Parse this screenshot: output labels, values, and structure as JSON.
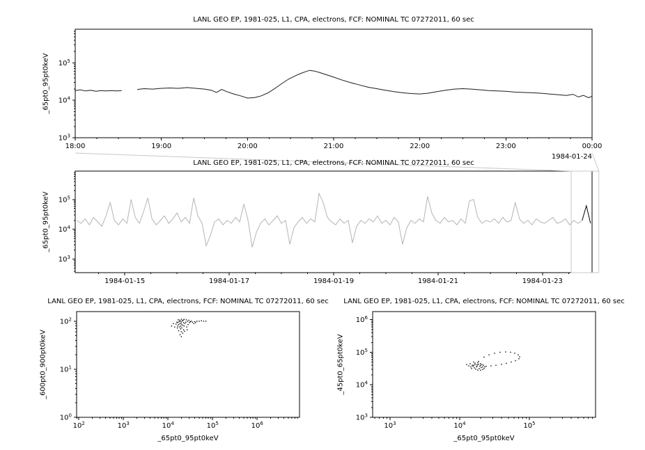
{
  "background": "#ffffff",
  "chart_data": [
    {
      "id": "top",
      "type": "line",
      "title": "LANL GEO EP, 1981-025, L1, CPA, electrons, FCF: NOMINAL TC 07272011, 60 sec",
      "ylabel": "_65pt0_95pt0keV",
      "xlabel": "",
      "x_axis": {
        "type": "linear",
        "range": [
          18,
          24
        ],
        "minor_step": 0.25,
        "end_label": "1984-01-24",
        "ticks": [
          {
            "v": 18,
            "label": "18:00"
          },
          {
            "v": 19,
            "label": "19:00"
          },
          {
            "v": 20,
            "label": "20:00"
          },
          {
            "v": 21,
            "label": "21:00"
          },
          {
            "v": 22,
            "label": "22:00"
          },
          {
            "v": 23,
            "label": "23:00"
          },
          {
            "v": 24,
            "label": "00:00"
          }
        ]
      },
      "y_axis": {
        "type": "log",
        "range": [
          3,
          5.9
        ],
        "decade_labels": [
          "10^3",
          "10^4",
          "10^5"
        ]
      },
      "grid": false,
      "series": [
        {
          "name": "_65pt0_95pt0keV",
          "color": "#1a1a1a",
          "points": [
            [
              18.0,
              4.26
            ],
            [
              18.06,
              4.28
            ],
            [
              18.12,
              4.25
            ],
            [
              18.18,
              4.27
            ],
            [
              18.24,
              4.24
            ],
            [
              18.3,
              4.26
            ],
            [
              18.36,
              4.25
            ],
            [
              18.42,
              4.26
            ],
            [
              18.48,
              4.25
            ],
            [
              18.54,
              4.26
            ],
            null,
            [
              18.72,
              4.29
            ],
            [
              18.8,
              4.31
            ],
            [
              18.9,
              4.3
            ],
            [
              19.0,
              4.32
            ],
            [
              19.1,
              4.33
            ],
            [
              19.2,
              4.32
            ],
            [
              19.3,
              4.34
            ],
            [
              19.4,
              4.32
            ],
            [
              19.5,
              4.3
            ],
            [
              19.58,
              4.27
            ],
            [
              19.64,
              4.21
            ],
            [
              19.7,
              4.29
            ],
            [
              19.76,
              4.23
            ],
            [
              19.84,
              4.17
            ],
            [
              19.92,
              4.12
            ],
            [
              20.0,
              4.06
            ],
            [
              20.08,
              4.07
            ],
            [
              20.16,
              4.12
            ],
            [
              20.24,
              4.2
            ],
            [
              20.32,
              4.32
            ],
            [
              20.4,
              4.45
            ],
            [
              20.48,
              4.57
            ],
            [
              20.56,
              4.66
            ],
            [
              20.62,
              4.72
            ],
            [
              20.68,
              4.77
            ],
            [
              20.72,
              4.8
            ],
            [
              20.78,
              4.78
            ],
            [
              20.84,
              4.74
            ],
            [
              20.92,
              4.68
            ],
            [
              21.0,
              4.62
            ],
            [
              21.1,
              4.54
            ],
            [
              21.2,
              4.47
            ],
            [
              21.3,
              4.41
            ],
            [
              21.4,
              4.35
            ],
            [
              21.5,
              4.31
            ],
            [
              21.6,
              4.27
            ],
            [
              21.7,
              4.23
            ],
            [
              21.8,
              4.2
            ],
            [
              21.9,
              4.18
            ],
            [
              22.0,
              4.17
            ],
            [
              22.1,
              4.19
            ],
            [
              22.2,
              4.23
            ],
            [
              22.3,
              4.27
            ],
            [
              22.4,
              4.3
            ],
            [
              22.5,
              4.31
            ],
            [
              22.6,
              4.3
            ],
            [
              22.7,
              4.28
            ],
            [
              22.8,
              4.26
            ],
            [
              22.9,
              4.25
            ],
            [
              23.0,
              4.24
            ],
            [
              23.1,
              4.22
            ],
            [
              23.2,
              4.21
            ],
            [
              23.3,
              4.2
            ],
            [
              23.4,
              4.19
            ],
            [
              23.5,
              4.17
            ],
            [
              23.6,
              4.15
            ],
            [
              23.7,
              4.13
            ],
            [
              23.78,
              4.16
            ],
            [
              23.84,
              4.09
            ],
            [
              23.9,
              4.13
            ],
            [
              23.96,
              4.07
            ],
            [
              24.0,
              4.11
            ]
          ]
        }
      ]
    },
    {
      "id": "context",
      "type": "line",
      "title": "LANL GEO EP, 1981-025, L1, CPA, electrons, FCF: NOMINAL TC 07272011, 60 sec",
      "ylabel": "_65pt0_95pt0keV",
      "xlabel": "",
      "x_axis": {
        "type": "linear",
        "range": [
          14.05,
          23.95
        ],
        "minor_step": 0.5,
        "ticks": [
          {
            "v": 15,
            "label": "1984-01-15"
          },
          {
            "v": 17,
            "label": "1984-01-17"
          },
          {
            "v": 19,
            "label": "1984-01-19"
          },
          {
            "v": 21,
            "label": "1984-01-21"
          },
          {
            "v": 23,
            "label": "1984-01-23"
          }
        ]
      },
      "y_axis": {
        "type": "log",
        "range": [
          2.55,
          5.95
        ],
        "decade_labels": [
          "10^3",
          "10^4",
          "10^5"
        ]
      },
      "grid": false,
      "zoom_box": {
        "from": 23.55,
        "to": 24.08,
        "color": "#c8c8c8"
      },
      "series": [
        {
          "name": "_65pt0_95pt0keV",
          "color": "#b4b4b4",
          "highlight_from": 23.7,
          "highlight_color": "#000000",
          "x_start": 14.08,
          "x_step": 0.08,
          "y_log10": [
            4.3,
            4.2,
            4.35,
            4.15,
            4.4,
            4.25,
            4.1,
            4.45,
            4.9,
            4.3,
            4.15,
            4.35,
            4.2,
            5.0,
            4.4,
            4.2,
            4.6,
            5.05,
            4.35,
            4.15,
            4.3,
            4.45,
            4.2,
            4.35,
            4.55,
            4.25,
            4.4,
            4.2,
            5.05,
            4.45,
            4.2,
            3.45,
            3.8,
            4.25,
            4.35,
            4.15,
            4.3,
            4.2,
            4.4,
            4.25,
            4.85,
            4.3,
            3.4,
            3.9,
            4.2,
            4.35,
            4.15,
            4.3,
            4.45,
            4.2,
            4.3,
            3.5,
            4.05,
            4.25,
            4.4,
            4.2,
            4.35,
            4.25,
            5.2,
            4.9,
            4.4,
            4.25,
            4.15,
            4.35,
            4.2,
            4.3,
            3.55,
            4.1,
            4.3,
            4.2,
            4.35,
            4.25,
            4.45,
            4.2,
            4.3,
            4.15,
            4.4,
            4.25,
            3.5,
            4.05,
            4.3,
            4.2,
            4.35,
            4.25,
            5.1,
            4.55,
            4.3,
            4.2,
            4.4,
            4.25,
            4.3,
            4.15,
            4.35,
            4.2,
            4.95,
            5.0,
            4.4,
            4.2,
            4.3,
            4.25,
            4.35,
            4.2,
            4.4,
            4.25,
            4.3,
            4.9,
            4.35,
            4.2,
            4.3,
            4.15,
            4.35,
            4.25,
            4.2,
            4.3,
            4.4,
            4.2,
            4.25,
            4.35,
            4.15,
            4.3,
            4.2,
            4.3,
            4.79,
            4.2
          ]
        }
      ]
    },
    {
      "id": "scatter-left",
      "type": "scatter",
      "title": "LANL GEO EP, 1981-025, L1, CPA, electrons, FCF: NOMINAL TC 07272011, 60 sec",
      "ylabel": "_600pt0_900pt0keV",
      "xlabel": "_65pt0_95pt0keV",
      "x_axis": {
        "type": "log",
        "range": [
          1.95,
          6.95
        ],
        "decade_labels": [
          "10^2",
          "10^3",
          "10^4",
          "10^5",
          "10^6"
        ]
      },
      "y_axis": {
        "type": "log",
        "range": [
          0,
          2.2
        ],
        "decade_labels": [
          "10^0",
          "10^1",
          "10^2"
        ]
      },
      "grid": false,
      "series": [
        {
          "color": "#000000",
          "points_log10": [
            [
              4.22,
              1.97
            ],
            [
              4.25,
              1.99
            ],
            [
              4.28,
              2.0
            ],
            [
              4.3,
              1.98
            ],
            [
              4.32,
              2.01
            ],
            [
              4.27,
              1.95
            ],
            [
              4.24,
              1.93
            ],
            [
              4.3,
              1.94
            ],
            [
              4.35,
              1.97
            ],
            [
              4.33,
              1.92
            ],
            [
              4.29,
              1.9
            ],
            [
              4.26,
              1.88
            ],
            [
              4.31,
              1.86
            ],
            [
              4.36,
              1.9
            ],
            [
              4.38,
              1.95
            ],
            [
              4.4,
              1.98
            ],
            [
              4.34,
              2.02
            ],
            [
              4.3,
              2.04
            ],
            [
              4.26,
              2.02
            ],
            [
              4.2,
              1.98
            ],
            [
              4.18,
              1.94
            ],
            [
              4.22,
              1.9
            ],
            [
              4.28,
              1.84
            ],
            [
              4.35,
              1.82
            ],
            [
              4.42,
              1.88
            ],
            [
              4.45,
              1.93
            ],
            [
              4.48,
              1.97
            ],
            [
              4.5,
              1.99
            ],
            [
              4.44,
              2.0
            ],
            [
              4.21,
              1.86
            ],
            [
              4.24,
              1.8
            ],
            [
              4.3,
              1.78
            ],
            [
              4.37,
              1.79
            ],
            [
              4.43,
              1.82
            ],
            [
              4.23,
              2.03
            ],
            [
              4.36,
              2.04
            ],
            [
              4.41,
              2.03
            ],
            [
              4.47,
              2.02
            ],
            [
              4.52,
              2.0
            ],
            [
              4.55,
              1.98
            ],
            [
              4.6,
              1.99
            ],
            [
              4.65,
              2.0
            ],
            [
              4.7,
              2.0
            ],
            [
              4.75,
              2.01
            ],
            [
              4.8,
              2.0
            ],
            [
              4.85,
              2.0
            ],
            [
              4.58,
              1.95
            ],
            [
              4.62,
              1.97
            ],
            [
              4.08,
              1.9
            ],
            [
              4.12,
              1.95
            ],
            [
              4.15,
              1.88
            ],
            [
              4.27,
              1.72
            ],
            [
              4.33,
              1.75
            ],
            [
              4.3,
              1.68
            ]
          ]
        }
      ]
    },
    {
      "id": "scatter-right",
      "type": "scatter",
      "title": "LANL GEO EP, 1981-025, L1, CPA, electrons, FCF: NOMINAL TC 07272011, 60 sec",
      "ylabel": "_45pt0_65pt0keV",
      "xlabel": "_65pt0_95pt0keV",
      "x_axis": {
        "type": "log",
        "range": [
          2.75,
          5.95
        ],
        "decade_labels": [
          "10^3",
          "10^4",
          "10^5"
        ]
      },
      "y_axis": {
        "type": "log",
        "range": [
          3,
          6.25
        ],
        "decade_labels": [
          "10^3",
          "10^4",
          "10^5",
          "10^6"
        ]
      },
      "grid": false,
      "series": [
        {
          "color": "#000000",
          "points_log10": [
            [
              4.2,
              4.6
            ],
            [
              4.22,
              4.62
            ],
            [
              4.25,
              4.58
            ],
            [
              4.27,
              4.63
            ],
            [
              4.3,
              4.6
            ],
            [
              4.24,
              4.55
            ],
            [
              4.21,
              4.52
            ],
            [
              4.28,
              4.5
            ],
            [
              4.33,
              4.55
            ],
            [
              4.3,
              4.65
            ],
            [
              4.26,
              4.68
            ],
            [
              4.22,
              4.66
            ],
            [
              4.18,
              4.6
            ],
            [
              4.16,
              4.55
            ],
            [
              4.23,
              4.48
            ],
            [
              4.3,
              4.45
            ],
            [
              4.35,
              4.5
            ],
            [
              4.32,
              4.62
            ],
            [
              4.27,
              4.72
            ],
            [
              4.2,
              4.7
            ],
            [
              4.15,
              4.65
            ],
            [
              4.25,
              4.62
            ],
            [
              4.29,
              4.57
            ],
            [
              4.34,
              4.6
            ],
            [
              4.31,
              4.53
            ],
            [
              4.19,
              4.57
            ],
            [
              4.17,
              4.5
            ],
            [
              4.26,
              4.45
            ],
            [
              4.33,
              4.47
            ],
            [
              4.36,
              4.55
            ],
            [
              4.13,
              4.58
            ],
            [
              4.1,
              4.62
            ],
            [
              4.35,
              4.85
            ],
            [
              4.42,
              4.92
            ],
            [
              4.5,
              4.97
            ],
            [
              4.58,
              5.0
            ],
            [
              4.66,
              5.01
            ],
            [
              4.73,
              5.0
            ],
            [
              4.79,
              4.97
            ],
            [
              4.84,
              4.92
            ],
            [
              4.86,
              4.86
            ],
            [
              4.85,
              4.8
            ],
            [
              4.8,
              4.74
            ],
            [
              4.74,
              4.7
            ],
            [
              4.67,
              4.66
            ],
            [
              4.6,
              4.63
            ],
            [
              4.52,
              4.6
            ],
            [
              4.45,
              4.58
            ],
            [
              4.38,
              4.57
            ]
          ]
        }
      ]
    }
  ]
}
